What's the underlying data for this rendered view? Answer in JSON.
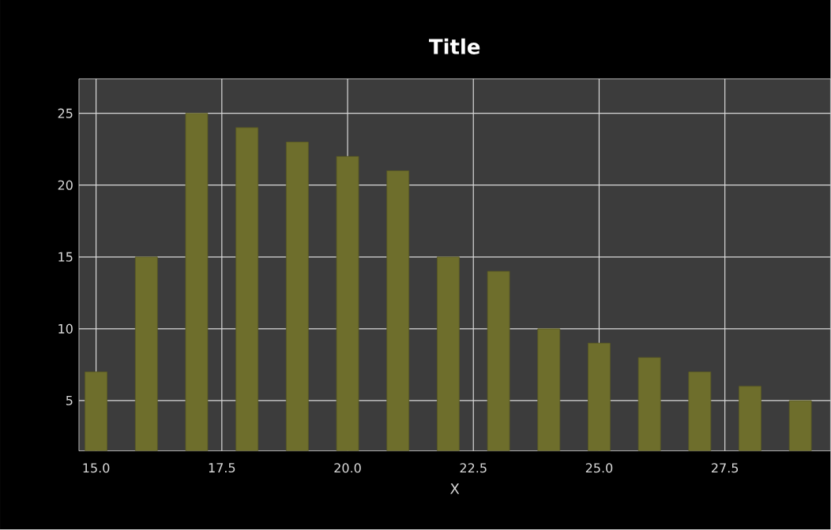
{
  "chart_data": {
    "type": "bar",
    "title": "Title",
    "xlabel": "X",
    "x": [
      15,
      16,
      17,
      18,
      19,
      20,
      21,
      22,
      23,
      24,
      25,
      26,
      27,
      28,
      29
    ],
    "values": [
      7,
      15,
      25,
      24,
      23,
      22,
      21,
      15,
      14,
      10,
      9,
      8,
      7,
      6,
      5
    ],
    "color": "#6e6e2c",
    "xlim": [
      14.66,
      29.6
    ],
    "ylim": [
      1.5,
      27.4
    ],
    "xticks": [
      {
        "value": 15,
        "label": "15.0"
      },
      {
        "value": 17.5,
        "label": "17.5"
      },
      {
        "value": 20,
        "label": "20.0"
      },
      {
        "value": 22.5,
        "label": "22.5"
      },
      {
        "value": 25,
        "label": "25.0"
      },
      {
        "value": 27.5,
        "label": "27.5"
      }
    ],
    "yticks": [
      5,
      10,
      15,
      20,
      25
    ],
    "grid": true
  }
}
